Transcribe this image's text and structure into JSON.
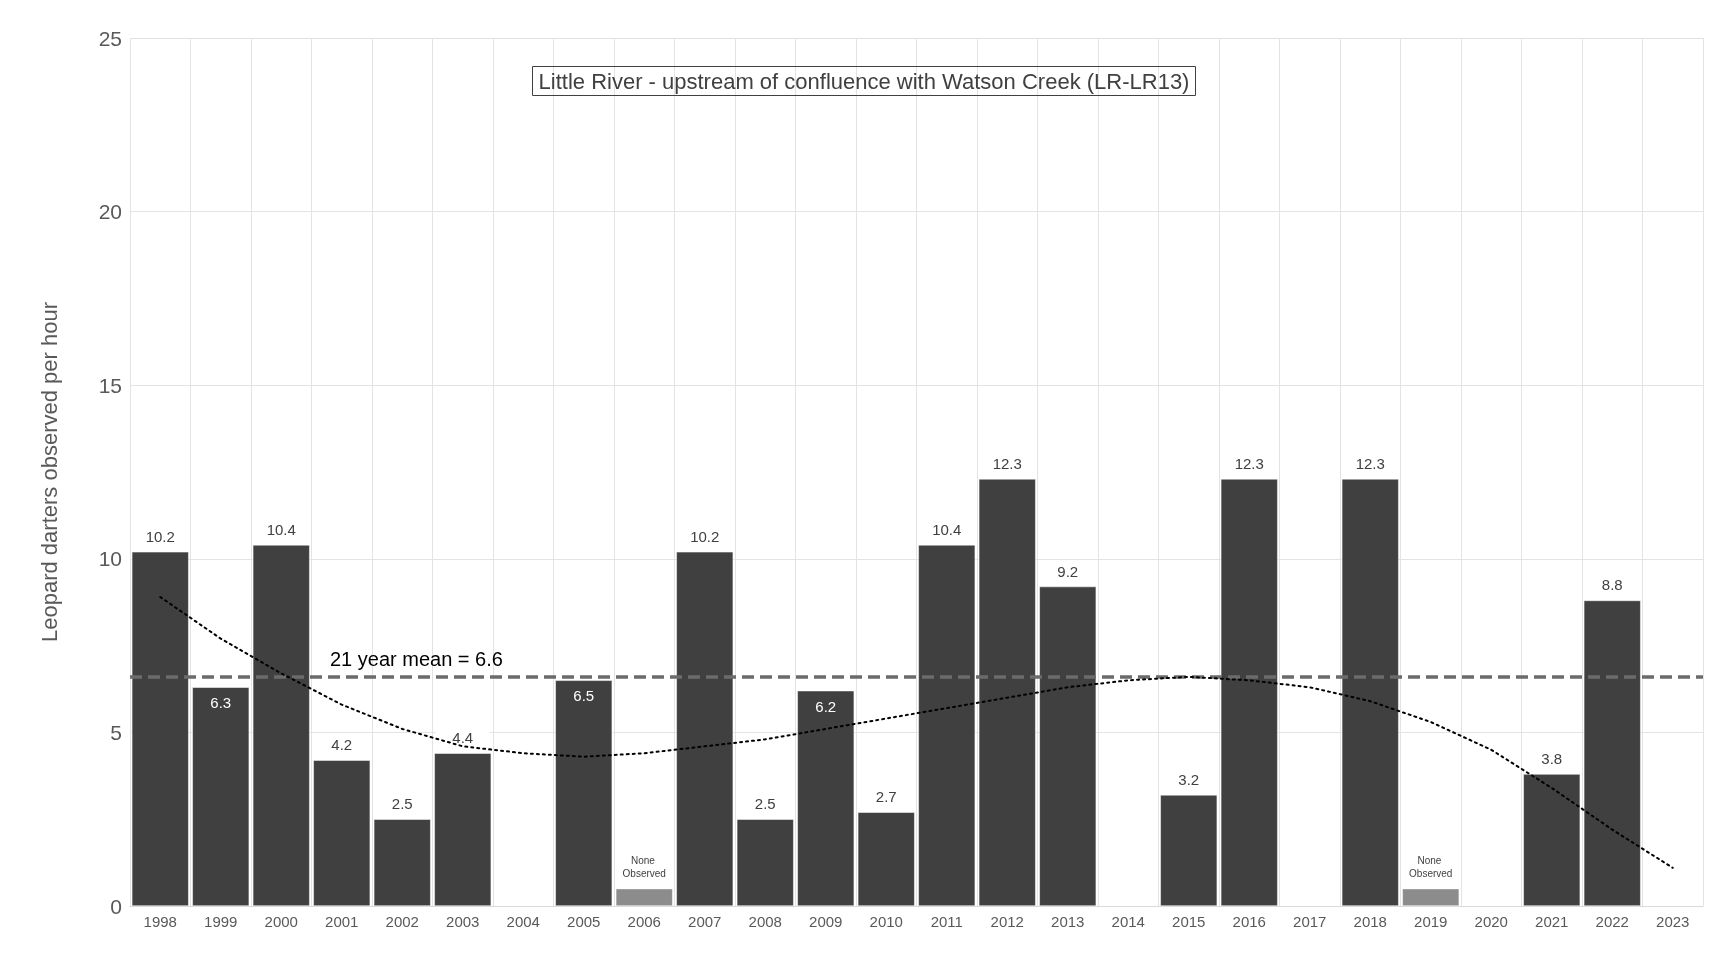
{
  "chart_data": {
    "type": "bar",
    "title": "Little River - upstream of confluence with Watson Creek (LR-LR13)",
    "ylabel": "Leopard darters observed per hour",
    "categories": [
      "1998",
      "1999",
      "2000",
      "2001",
      "2002",
      "2003",
      "2004",
      "2005",
      "2006",
      "2007",
      "2008",
      "2009",
      "2010",
      "2011",
      "2012",
      "2013",
      "2014",
      "2015",
      "2016",
      "2017",
      "2018",
      "2019",
      "2020",
      "2021",
      "2022",
      "2023"
    ],
    "series": [
      {
        "color": "#404040",
        "values": [
          10.2,
          6.3,
          10.4,
          4.2,
          2.5,
          4.4,
          null,
          6.5,
          null,
          10.2,
          2.5,
          6.2,
          2.7,
          10.4,
          12.3,
          9.2,
          null,
          3.2,
          12.3,
          null,
          12.3,
          null,
          null,
          3.8,
          8.8,
          null
        ],
        "data_labels": true
      },
      {
        "color": "#8c8c8c",
        "values": [
          null,
          null,
          null,
          null,
          null,
          null,
          null,
          null,
          0.5,
          null,
          null,
          null,
          null,
          null,
          null,
          null,
          null,
          null,
          null,
          null,
          null,
          0.5,
          null,
          null,
          null,
          null
        ],
        "value_labels": [
          null,
          null,
          null,
          null,
          null,
          null,
          null,
          null,
          "None Observed",
          null,
          null,
          null,
          null,
          null,
          null,
          null,
          null,
          null,
          null,
          null,
          null,
          "None Observed",
          null,
          null,
          null,
          null
        ]
      },
      {
        "type": "line",
        "color": "#000000",
        "line_style": "dotted",
        "marker": "none",
        "values": [
          8.9,
          7.7,
          6.7,
          5.8,
          5.1,
          4.6,
          4.4,
          4.3,
          4.4,
          4.6,
          4.8,
          5.1,
          5.4,
          5.7,
          6.0,
          6.3,
          6.5,
          6.6,
          6.5,
          6.3,
          5.9,
          5.3,
          4.5,
          3.4,
          2.2,
          1.1
        ]
      }
    ],
    "ylim": [
      0,
      25
    ],
    "yticks": [
      0,
      5,
      10,
      15,
      20,
      25
    ],
    "grid": true,
    "ref_lines": [
      {
        "axis": "y",
        "value": 6.6,
        "label": "21 year mean = 6.6",
        "color": "#6b6b6b",
        "line_style": "dashed"
      }
    ]
  }
}
